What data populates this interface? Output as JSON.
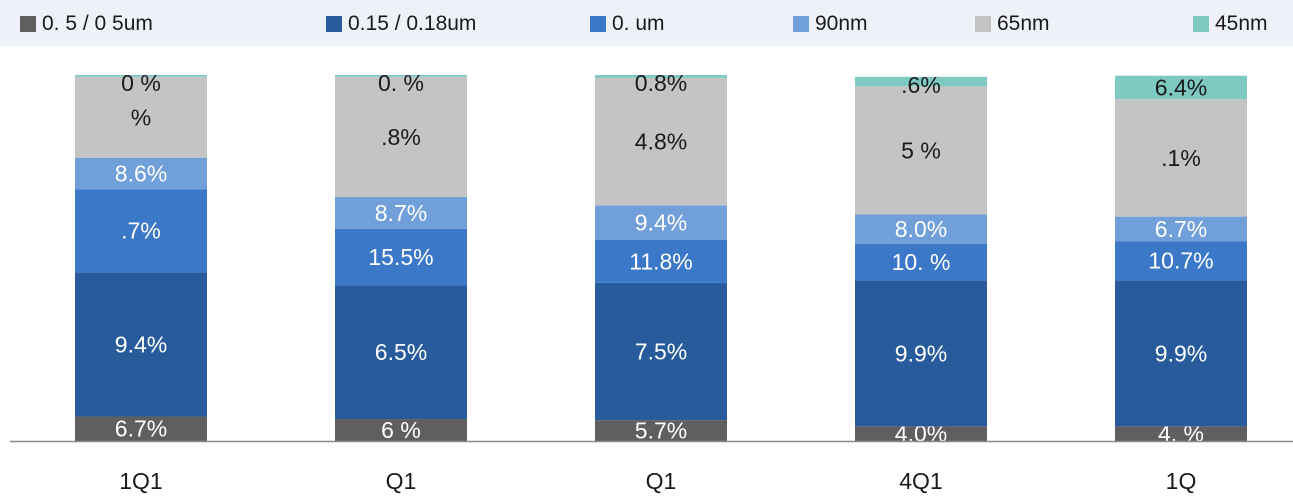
{
  "chart_data": {
    "type": "bar",
    "stacked": true,
    "categories": [
      "1Q1",
      "Q1",
      "Q1",
      "4Q1",
      "1Q"
    ],
    "series": [
      {
        "name": "0.  5 / 0  5um",
        "color": "#5f5f5f",
        "values": [
          6.7,
          6.0,
          5.7,
          4.0,
          4.0
        ],
        "labels": [
          "6.7%",
          "6  %",
          "5.7%",
          "4.0%",
          "4.  %"
        ]
      },
      {
        "name": "0.15 / 0.18um",
        "color": "#275b9b",
        "values": [
          39.4,
          36.5,
          37.5,
          39.9,
          39.9
        ],
        "labels": [
          "9.4%",
          "6.5%",
          "7.5%",
          "9.9%",
          "9.9%"
        ]
      },
      {
        "name": "0.   um",
        "color": "#3b78c8",
        "values": [
          22.7,
          15.5,
          11.8,
          10.0,
          10.7
        ],
        "labels": [
          ".7%",
          "15.5%",
          "11.8%",
          "10.  %",
          "10.7%"
        ]
      },
      {
        "name": "90nm",
        "color": "#719fd9",
        "values": [
          8.6,
          8.7,
          9.4,
          8.0,
          6.7
        ],
        "labels": [
          "8.6%",
          "8.7%",
          "9.4%",
          "8.0%",
          "6.7%"
        ]
      },
      {
        "name": "65nm",
        "color": "#c4c4c4",
        "values": [
          22.1,
          32.8,
          34.8,
          35.0,
          32.1
        ],
        "labels": [
          " %",
          ".8%",
          "4.8%",
          "5  %",
          ".1%"
        ]
      },
      {
        "name": "45nm",
        "color": "#7fc9c3",
        "values": [
          0.5,
          0.5,
          0.8,
          2.6,
          6.4
        ],
        "labels": [
          "0  %",
          "0.  %",
          "0.8%",
          ".6%",
          "6.4%"
        ]
      }
    ],
    "ylim": [
      0,
      100
    ],
    "xlabel": "",
    "ylabel": "",
    "legend_position": "top",
    "grid": false
  }
}
